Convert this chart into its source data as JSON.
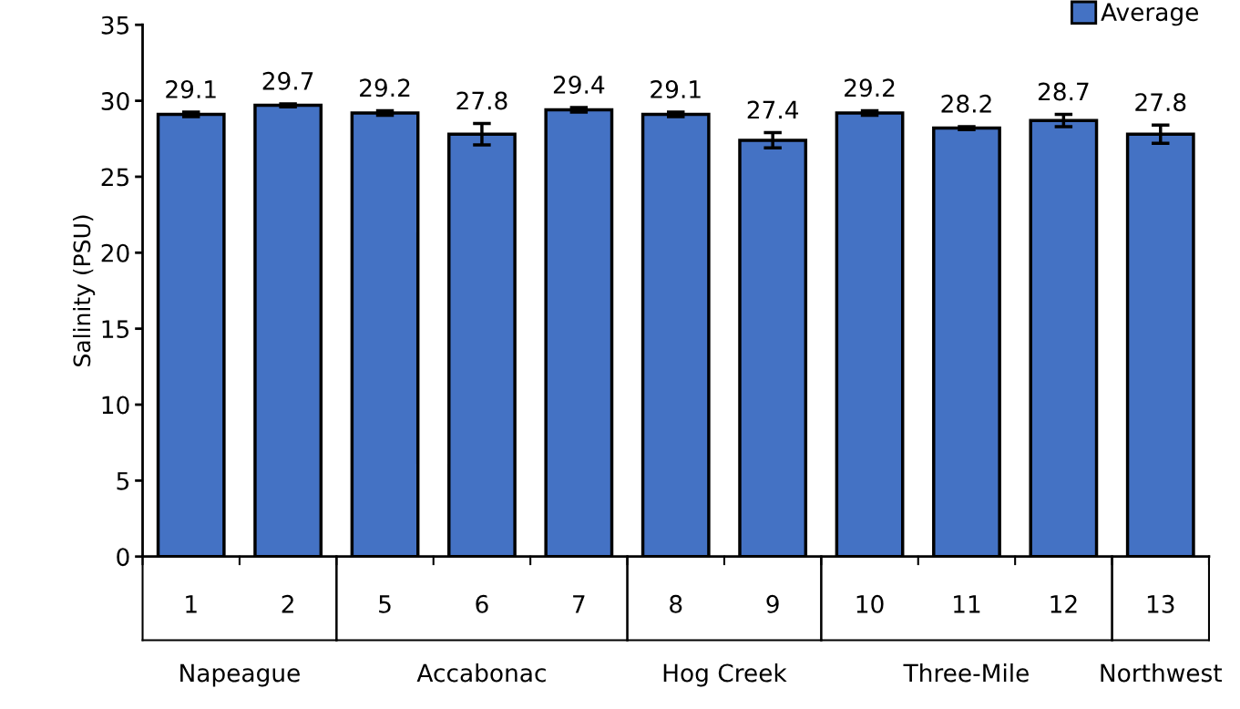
{
  "chart_data": {
    "type": "bar",
    "ylabel": "Salinity (PSU)",
    "categories": [
      "1",
      "2",
      "5",
      "6",
      "7",
      "8",
      "9",
      "10",
      "11",
      "12",
      "13"
    ],
    "series": [
      {
        "name": "Average",
        "color": "#4472c4",
        "values": [
          29.1,
          29.7,
          29.2,
          27.8,
          29.4,
          29.1,
          27.4,
          29.2,
          28.2,
          28.7,
          27.8
        ],
        "errors": [
          0.15,
          0.1,
          0.15,
          0.7,
          0.15,
          0.15,
          0.5,
          0.15,
          0.1,
          0.4,
          0.6
        ]
      }
    ],
    "data_labels": true,
    "ylim": [
      0,
      35
    ],
    "yticks": [
      0,
      5,
      10,
      15,
      20,
      25,
      30,
      35
    ],
    "grid": false,
    "legend": "top right",
    "annotations": [
      "Napeague",
      "Accabonac",
      "Hog Creek",
      "Three-Mile",
      "Northwest"
    ]
  }
}
